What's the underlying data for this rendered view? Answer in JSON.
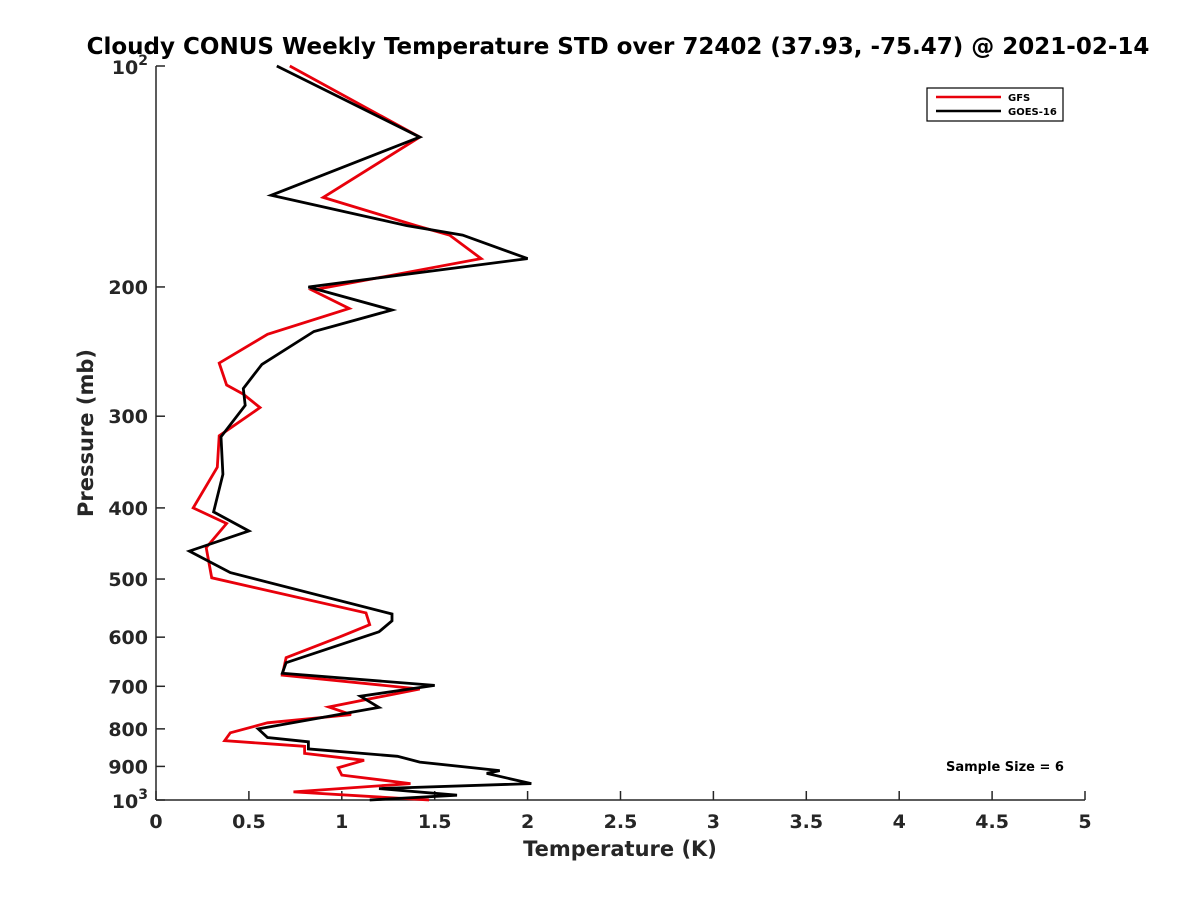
{
  "chart_data": {
    "type": "line",
    "title": "Cloudy CONUS Weekly Temperature STD over 72402 (37.93, -75.47) @ 2021-02-14",
    "xlabel": "Temperature (K)",
    "ylabel": "Pressure (mb)",
    "xlim": [
      0,
      5
    ],
    "ylim": [
      100,
      1000
    ],
    "y_scale": "log",
    "y_reversed": true,
    "x_ticks": [
      {
        "value": 0,
        "label": "0"
      },
      {
        "value": 0.5,
        "label": "0.5"
      },
      {
        "value": 1,
        "label": "1"
      },
      {
        "value": 1.5,
        "label": "1.5"
      },
      {
        "value": 2,
        "label": "2"
      },
      {
        "value": 2.5,
        "label": "2.5"
      },
      {
        "value": 3,
        "label": "3"
      },
      {
        "value": 3.5,
        "label": "3.5"
      },
      {
        "value": 4,
        "label": "4"
      },
      {
        "value": 4.5,
        "label": "4.5"
      },
      {
        "value": 5,
        "label": "5"
      }
    ],
    "y_ticks": [
      {
        "value": 100,
        "base": "10",
        "exp": "2"
      },
      {
        "value": 200,
        "label": "200"
      },
      {
        "value": 300,
        "label": "300"
      },
      {
        "value": 400,
        "label": "400"
      },
      {
        "value": 500,
        "label": "500"
      },
      {
        "value": 600,
        "label": "600"
      },
      {
        "value": 700,
        "label": "700"
      },
      {
        "value": 800,
        "label": "800"
      },
      {
        "value": 900,
        "label": "900"
      },
      {
        "value": 1000,
        "base": "10",
        "exp": "3"
      }
    ],
    "grid": false,
    "legend": "top-right",
    "annotation": "Sample Size = 6",
    "series": [
      {
        "name": "GFS",
        "color": "#e8000b",
        "x": [
          0.72,
          1.42,
          0.9,
          1.4,
          1.58,
          1.75,
          0.84,
          1.04,
          0.6,
          0.34,
          0.38,
          0.47,
          0.56,
          0.34,
          0.33,
          0.2,
          0.38,
          0.27,
          0.3,
          1.13,
          1.15,
          1.0,
          0.7,
          0.68,
          1.42,
          0.93,
          1.05,
          0.6,
          0.4,
          0.37,
          0.6,
          0.8,
          0.8,
          1.12,
          0.98,
          1.0,
          1.37,
          0.74,
          1.47
        ],
        "y": [
          100,
          125,
          151,
          165,
          170,
          183,
          202,
          214,
          232,
          254,
          272,
          280,
          292,
          319,
          352,
          400,
          420,
          453,
          498,
          556,
          577,
          598,
          640,
          676,
          706,
          747,
          765,
          785,
          810,
          830,
          838,
          845,
          864,
          883,
          904,
          925,
          950,
          975,
          1000
        ]
      },
      {
        "name": "GOES-16",
        "color": "#000000",
        "x": [
          0.65,
          1.42,
          0.62,
          1.35,
          1.65,
          2.0,
          0.82,
          1.27,
          0.85,
          0.57,
          0.47,
          0.48,
          0.35,
          0.36,
          0.31,
          0.5,
          0.18,
          0.4,
          1.27,
          1.27,
          1.2,
          0.7,
          0.68,
          1.5,
          1.1,
          1.2,
          0.55,
          0.6,
          0.82,
          0.82,
          1.3,
          1.42,
          1.85,
          1.78,
          2.02,
          1.2,
          1.62,
          1.15
        ],
        "y": [
          100,
          125,
          150,
          165,
          170,
          183,
          200,
          215,
          230,
          255,
          275,
          290,
          320,
          360,
          405,
          430,
          458,
          490,
          558,
          570,
          590,
          650,
          672,
          698,
          722,
          748,
          800,
          822,
          833,
          852,
          872,
          888,
          912,
          920,
          950,
          965,
          985,
          1000
        ]
      }
    ]
  }
}
